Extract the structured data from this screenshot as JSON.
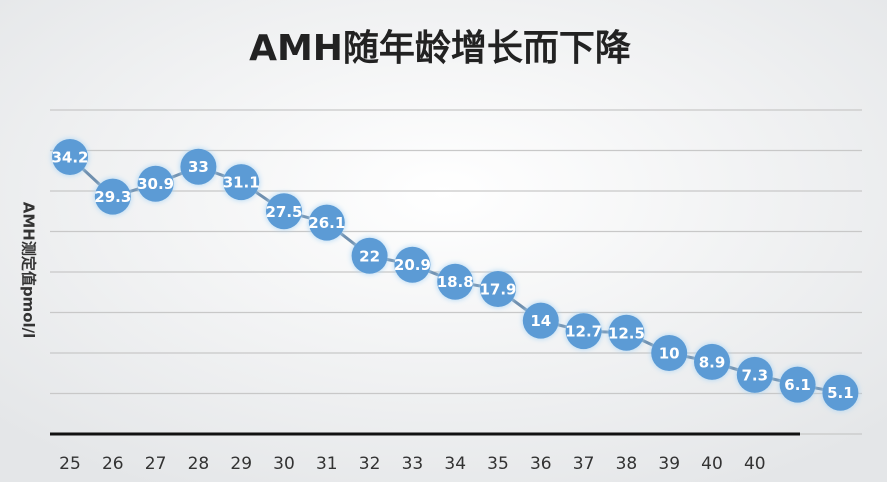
{
  "chart_data": {
    "type": "line",
    "title": "AMH随年龄增长而下降",
    "y_label": "AMH测定值pmol/l",
    "categories": [
      "25",
      "26",
      "27",
      "28",
      "29",
      "30",
      "31",
      "32",
      "33",
      "34",
      "35",
      "36",
      "37",
      "38",
      "39",
      "40",
      "40",
      null,
      null
    ],
    "series": [
      {
        "name": "AMH",
        "color": "#5b9bd5",
        "values": [
          34.2,
          29.3,
          30.9,
          33,
          31.1,
          27.5,
          26.1,
          22,
          20.9,
          18.8,
          17.9,
          14,
          12.7,
          12.5,
          10,
          8.9,
          7.3,
          6.1,
          5.1
        ]
      }
    ],
    "ylim": [
      0,
      40
    ],
    "yticks": [
      0,
      5,
      10,
      15,
      20,
      25,
      30,
      35,
      40
    ],
    "grid": true
  }
}
